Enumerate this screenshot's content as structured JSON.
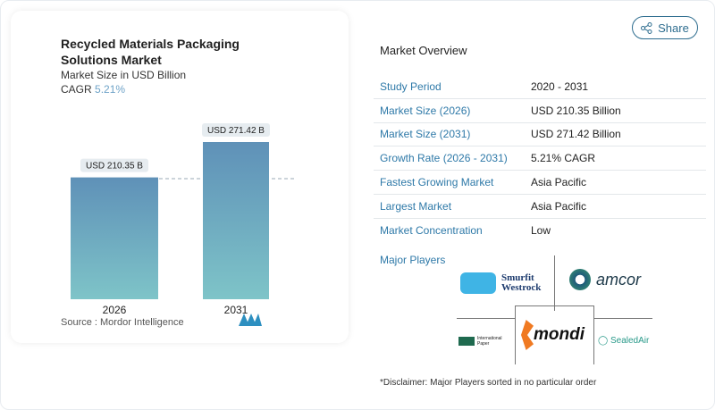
{
  "header": {
    "share_label": "Share",
    "share_icon": "share-icon"
  },
  "chart_data": {
    "type": "bar",
    "title": "Recycled Materials Packaging Solutions Market",
    "subtitle": "Market Size in USD Billion",
    "cagr_label": "CAGR",
    "cagr_value": "5.21%",
    "categories": [
      "2026",
      "2031"
    ],
    "values": [
      210.35,
      271.42
    ],
    "data_labels": [
      "USD 210.35 B",
      "USD 271.42 B"
    ],
    "colors": {
      "top": "#5f91b8",
      "bottom": "#7ec4c8"
    },
    "grid": false,
    "source": "Source :  Mordor Intelligence"
  },
  "overview": {
    "title": "Market Overview",
    "rows": [
      {
        "k": "Study Period",
        "v": "2020 - 2031"
      },
      {
        "k": "Market Size (2026)",
        "v": "USD 210.35 Billion"
      },
      {
        "k": "Market Size (2031)",
        "v": "USD 271.42 Billion"
      },
      {
        "k": "Growth Rate (2026 - 2031)",
        "v": "5.21% CAGR"
      },
      {
        "k": "Fastest Growing Market",
        "v": "Asia Pacific"
      },
      {
        "k": "Largest Market",
        "v": "Asia Pacific"
      },
      {
        "k": "Market Concentration",
        "v": "Low"
      }
    ]
  },
  "players": {
    "title": "Major Players",
    "logos": [
      "Smurfit Westrock",
      "amcor",
      "International Paper",
      "mondi",
      "Sealed Air"
    ]
  },
  "disclaimer": "*Disclaimer: Major Players sorted in no particular order"
}
